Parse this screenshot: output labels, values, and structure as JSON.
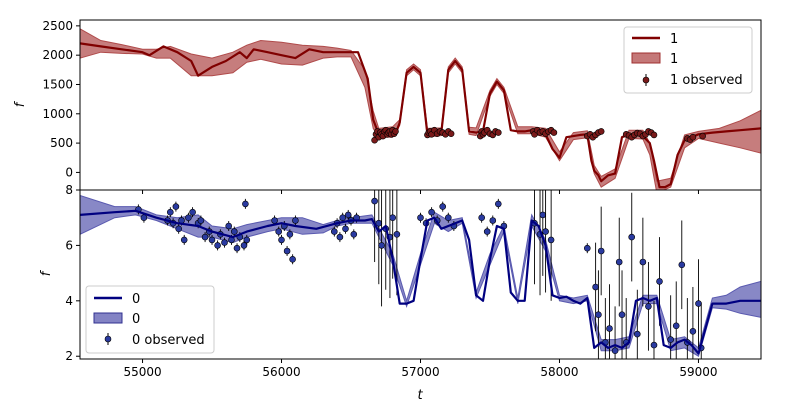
{
  "chart_data": [
    {
      "type": "line",
      "panel": "top",
      "xlabel": "",
      "ylabel": "f",
      "xlim": [
        54550,
        59450
      ],
      "ylim": [
        -300,
        2600
      ],
      "yticks": [
        0,
        500,
        1000,
        1500,
        2000,
        2500
      ],
      "grid": false,
      "legend_position": "top-right",
      "colors": {
        "line": "#800000",
        "band": "#b04b4b",
        "points": "#7a1a1a"
      },
      "legend": [
        "1",
        "1",
        "1 observed"
      ],
      "series": [
        {
          "name": "1",
          "kind": "model",
          "x": [
            54550,
            54700,
            54850,
            55000,
            55050,
            55150,
            55250,
            55350,
            55400,
            55500,
            55600,
            55700,
            55750,
            55800,
            55900,
            56000,
            56100,
            56200,
            56300,
            56400,
            56500,
            56550,
            56620,
            56660,
            56700,
            56760,
            56820,
            56850,
            56900,
            56950,
            57000,
            57050,
            57100,
            57150,
            57200,
            57250,
            57300,
            57350,
            57400,
            57450,
            57500,
            57550,
            57600,
            57650,
            57700,
            57750,
            57800,
            57850,
            57900,
            57950,
            58000,
            58050,
            58100,
            58150,
            58200,
            58230,
            58250,
            58280,
            58300,
            58350,
            58400,
            58450,
            58500,
            58550,
            58600,
            58650,
            58680,
            58720,
            58760,
            58800,
            58850,
            58900,
            58950,
            59000,
            59100,
            59200,
            59300,
            59450
          ],
          "y": [
            2200,
            2150,
            2100,
            2050,
            2000,
            2150,
            2050,
            1900,
            1650,
            1800,
            1900,
            2050,
            1950,
            2100,
            2050,
            2000,
            1950,
            2100,
            2050,
            2050,
            2050,
            2050,
            1600,
            900,
            650,
            700,
            650,
            850,
            1700,
            1800,
            1700,
            650,
            700,
            680,
            1750,
            1900,
            1750,
            700,
            680,
            700,
            1350,
            1550,
            1400,
            720,
            700,
            700,
            720,
            720,
            650,
            400,
            250,
            600,
            620,
            640,
            650,
            200,
            30,
            -50,
            -150,
            -50,
            -20,
            600,
            650,
            650,
            620,
            500,
            200,
            -250,
            -250,
            -200,
            300,
            550,
            600,
            650,
            680,
            700,
            720,
            750
          ]
        },
        {
          "name": "1",
          "kind": "band",
          "x": [
            54550,
            54700,
            54850,
            55000,
            55100,
            55200,
            55350,
            55500,
            55650,
            55750,
            55850,
            56000,
            56150,
            56300,
            56400,
            56500,
            56600,
            56660,
            56700,
            56800,
            56850,
            56900,
            56950,
            57000,
            57050,
            57150,
            57200,
            57250,
            57300,
            57350,
            57400,
            57500,
            57550,
            57600,
            57700,
            57800,
            57900,
            58000,
            58100,
            58200,
            58250,
            58300,
            58400,
            58500,
            58600,
            58650,
            58700,
            58800,
            58900,
            59000,
            59150,
            59300,
            59450
          ],
          "lower": [
            1950,
            2050,
            2030,
            2020,
            1950,
            1950,
            1650,
            1650,
            1700,
            1880,
            1930,
            1850,
            1830,
            1950,
            1970,
            1970,
            1450,
            750,
            600,
            600,
            800,
            1650,
            1750,
            1650,
            600,
            630,
            1700,
            1850,
            1700,
            650,
            630,
            1300,
            1500,
            1350,
            660,
            660,
            600,
            200,
            560,
            590,
            -20,
            -250,
            -100,
            580,
            570,
            300,
            -350,
            -250,
            420,
            580,
            500,
            420,
            330
          ],
          "upper": [
            2450,
            2250,
            2180,
            2100,
            2100,
            2150,
            2020,
            1950,
            2050,
            2170,
            2250,
            2220,
            2170,
            2150,
            2120,
            2080,
            1750,
            1050,
            750,
            780,
            900,
            1750,
            1850,
            1750,
            750,
            760,
            1800,
            1950,
            1800,
            770,
            760,
            1400,
            1600,
            1450,
            780,
            780,
            750,
            350,
            680,
            710,
            120,
            -70,
            60,
            720,
            720,
            500,
            -150,
            -100,
            640,
            700,
            750,
            880,
            1060
          ]
        },
        {
          "name": "1 observed",
          "kind": "observations",
          "x": [
            56670,
            56680,
            56690,
            56700,
            56710,
            56720,
            56730,
            56740,
            56750,
            56760,
            56770,
            56780,
            56790,
            56800,
            56810,
            56820,
            57050,
            57060,
            57070,
            57080,
            57100,
            57120,
            57140,
            57160,
            57180,
            57200,
            57220,
            57430,
            57440,
            57450,
            57460,
            57480,
            57500,
            57520,
            57540,
            57560,
            57810,
            57820,
            57840,
            57860,
            57880,
            57900,
            57920,
            57940,
            57960,
            58200,
            58220,
            58240,
            58260,
            58280,
            58300,
            58480,
            58500,
            58520,
            58540,
            58560,
            58580,
            58600,
            58620,
            58640,
            58660,
            58680,
            58920,
            58940,
            58960,
            59030
          ],
          "y": [
            550,
            650,
            700,
            600,
            680,
            650,
            620,
            700,
            720,
            650,
            680,
            700,
            650,
            720,
            660,
            700,
            640,
            680,
            700,
            650,
            720,
            660,
            700,
            680,
            650,
            700,
            660,
            620,
            700,
            650,
            680,
            720,
            660,
            640,
            700,
            680,
            700,
            650,
            720,
            680,
            700,
            660,
            700,
            720,
            680,
            620,
            650,
            600,
            640,
            680,
            700,
            650,
            630,
            600,
            640,
            670,
            660,
            620,
            650,
            700,
            680,
            640,
            580,
            560,
            600,
            620
          ]
        }
      ]
    },
    {
      "type": "line",
      "panel": "bottom",
      "xlabel": "t",
      "ylabel": "f",
      "xlim": [
        54550,
        59450
      ],
      "ylim": [
        1.9,
        8.0
      ],
      "yticks": [
        2,
        4,
        6,
        8
      ],
      "xticks": [
        55000,
        56000,
        57000,
        58000,
        59000
      ],
      "grid": false,
      "legend_position": "bottom-left",
      "colors": {
        "line": "#000080",
        "band": "#5a5ab0",
        "points": "#2a3aa0"
      },
      "legend": [
        "0",
        "0",
        "0 observed"
      ],
      "series": [
        {
          "name": "0",
          "kind": "model",
          "x": [
            54550,
            54800,
            54950,
            55100,
            55250,
            55400,
            55500,
            55650,
            55750,
            55900,
            56000,
            56100,
            56250,
            56400,
            56500,
            56600,
            56650,
            56700,
            56750,
            56800,
            56850,
            56900,
            56950,
            57000,
            57050,
            57100,
            57150,
            57200,
            57300,
            57350,
            57400,
            57450,
            57500,
            57550,
            57600,
            57650,
            57700,
            57750,
            57800,
            57850,
            57900,
            57950,
            58000,
            58050,
            58100,
            58150,
            58200,
            58250,
            58300,
            58350,
            58400,
            58450,
            58500,
            58550,
            58600,
            58650,
            58700,
            58750,
            58800,
            58850,
            58900,
            58950,
            59000,
            59100,
            59200,
            59300,
            59450
          ],
          "y": [
            7.1,
            7.2,
            7.25,
            7.0,
            6.8,
            6.7,
            6.5,
            6.3,
            6.5,
            6.7,
            6.8,
            6.7,
            6.6,
            6.8,
            6.9,
            6.9,
            6.95,
            6.5,
            6.7,
            5.5,
            3.9,
            3.9,
            4.0,
            5.5,
            6.9,
            7.0,
            6.6,
            6.7,
            6.9,
            6.2,
            4.2,
            4.0,
            5.5,
            6.7,
            6.6,
            4.3,
            4.0,
            4.0,
            6.9,
            6.7,
            6.0,
            4.2,
            4.1,
            4.15,
            4.0,
            3.9,
            4.1,
            2.3,
            2.5,
            2.3,
            2.4,
            2.3,
            2.5,
            4.0,
            4.1,
            4.0,
            4.1,
            2.4,
            2.3,
            2.5,
            2.6,
            2.4,
            2.1,
            3.9,
            3.9,
            4.0,
            4.0
          ]
        },
        {
          "name": "0",
          "kind": "band",
          "x": [
            54550,
            54800,
            54950,
            55100,
            55250,
            55400,
            55500,
            55650,
            55750,
            55900,
            56000,
            56150,
            56300,
            56400,
            56500,
            56650,
            56800,
            56900,
            57000,
            57100,
            57200,
            57300,
            57400,
            57500,
            57600,
            57700,
            57800,
            57900,
            58000,
            58100,
            58200,
            58300,
            58400,
            58500,
            58600,
            58700,
            58800,
            58900,
            59000,
            59100,
            59200,
            59300,
            59450
          ],
          "lower": [
            6.4,
            7.0,
            7.1,
            6.9,
            6.6,
            6.3,
            6.3,
            6.1,
            6.3,
            6.5,
            6.6,
            6.4,
            6.45,
            6.7,
            6.8,
            6.8,
            5.3,
            3.8,
            5.3,
            6.8,
            6.5,
            6.8,
            4.1,
            5.3,
            6.5,
            3.9,
            6.7,
            5.8,
            4.0,
            3.9,
            4.0,
            2.2,
            2.2,
            2.3,
            3.9,
            3.9,
            2.2,
            2.3,
            2.0,
            3.75,
            3.7,
            3.55,
            3.4
          ],
          "upper": [
            7.8,
            7.4,
            7.4,
            7.1,
            7.0,
            7.1,
            6.7,
            6.6,
            6.75,
            6.9,
            7.0,
            7.0,
            6.75,
            6.9,
            7.0,
            7.1,
            5.7,
            4.0,
            5.7,
            7.2,
            6.9,
            7.0,
            4.3,
            5.7,
            6.7,
            4.1,
            7.1,
            6.2,
            4.2,
            4.1,
            4.2,
            2.6,
            2.6,
            2.7,
            4.2,
            4.2,
            2.6,
            2.7,
            2.3,
            4.1,
            4.2,
            4.5,
            4.7
          ]
        },
        {
          "name": "0 observed",
          "kind": "observations",
          "x": [
            54970,
            55010,
            55180,
            55200,
            55220,
            55240,
            55260,
            55280,
            55300,
            55330,
            55360,
            55400,
            55420,
            55450,
            55480,
            55500,
            55540,
            55560,
            55590,
            55620,
            55640,
            55660,
            55680,
            55700,
            55730,
            55740,
            55750,
            55950,
            55980,
            56000,
            56020,
            56040,
            56060,
            56080,
            56100,
            56380,
            56400,
            56420,
            56440,
            56460,
            56480,
            56500,
            56520,
            56540,
            56670,
            56700,
            56720,
            56750,
            56780,
            56800,
            56830,
            57000,
            57040,
            57080,
            57120,
            57160,
            57200,
            57240,
            57440,
            57480,
            57520,
            57560,
            57600,
            57820,
            57860,
            57880,
            57900,
            57940,
            58200,
            58260,
            58280,
            58300,
            58330,
            58360,
            58400,
            58430,
            58450,
            58480,
            58520,
            58560,
            58600,
            58640,
            58680,
            58720,
            58800,
            58840,
            58880,
            58920,
            58960,
            59000,
            59020
          ],
          "y": [
            7.3,
            7.0,
            6.9,
            7.2,
            6.8,
            7.4,
            6.6,
            6.9,
            6.2,
            7.0,
            7.2,
            6.8,
            6.9,
            6.3,
            6.5,
            6.2,
            6.0,
            6.4,
            6.1,
            6.7,
            6.2,
            6.5,
            5.9,
            6.3,
            6.0,
            7.5,
            6.2,
            6.9,
            6.5,
            6.2,
            6.7,
            5.8,
            6.4,
            5.5,
            6.9,
            6.5,
            6.8,
            6.3,
            7.0,
            6.6,
            7.1,
            6.9,
            6.4,
            7.0,
            7.6,
            6.8,
            6.0,
            6.6,
            6.3,
            7.0,
            6.4,
            7.0,
            6.8,
            7.2,
            6.9,
            7.4,
            7.0,
            6.7,
            7.0,
            6.5,
            6.9,
            7.5,
            6.7,
            6.8,
            6.4,
            7.1,
            6.5,
            6.2,
            5.9,
            4.5,
            3.5,
            5.8,
            2.5,
            3.0,
            2.2,
            5.4,
            3.5,
            2.5,
            6.3,
            2.8,
            5.4,
            3.8,
            2.4,
            4.7,
            2.6,
            3.1,
            5.3,
            2.5,
            2.9,
            3.9,
            2.3
          ]
        }
      ]
    }
  ]
}
